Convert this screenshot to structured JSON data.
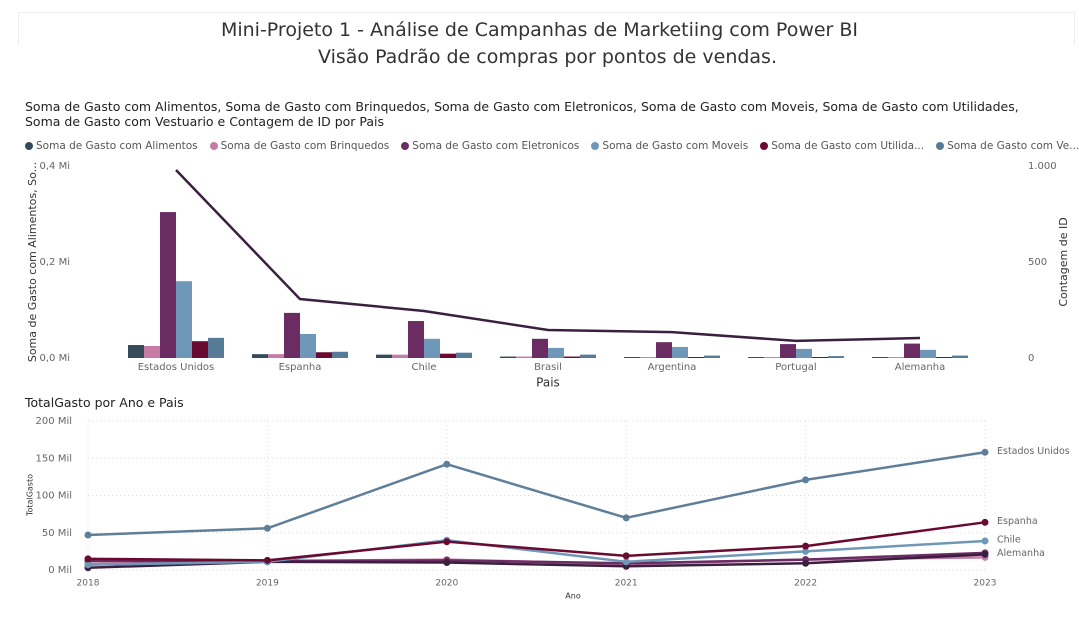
{
  "header": {
    "title": "Mini-Projeto 1 - Análise de Campanhas de Marketiing com Power BI",
    "subtitle": "Visão Padrão de compras por pontos de vendas."
  },
  "chart_data": [
    {
      "type": "bar",
      "title": "Soma de Gasto com Alimentos, Soma de Gasto com Brinquedos, Soma de Gasto com Eletronicos, Soma de Gasto com Moveis, Soma de Gasto com Utilidades, Soma de Gasto com Vestuario e Contagem de ID por Pais",
      "x_label": "Pais",
      "y_label": "Soma de Gasto com Alimentos, So...",
      "y2_label": "Contagem de ID",
      "categories": [
        "Estados Unidos",
        "Espanha",
        "Chile",
        "Brasil",
        "Argentina",
        "Portugal",
        "Alemanha"
      ],
      "series": [
        {
          "name": "Soma de Gasto com Alimentos",
          "color": "#374a5a",
          "values": [
            27000,
            8000,
            7000,
            3000,
            2000,
            2000,
            2000
          ]
        },
        {
          "name": "Soma de Gasto com Brinquedos",
          "color": "#c77ba7",
          "values": [
            25000,
            8000,
            7000,
            3000,
            2000,
            2000,
            2000
          ]
        },
        {
          "name": "Soma de Gasto com Eletronicos",
          "color": "#6b2c64",
          "values": [
            304000,
            94000,
            77000,
            40000,
            33000,
            29000,
            30000
          ]
        },
        {
          "name": "Soma de Gasto com Moveis",
          "color": "#6f98b8",
          "values": [
            160000,
            50000,
            40000,
            21000,
            23000,
            19000,
            17000
          ]
        },
        {
          "name": "Soma de Gasto com Utilida...",
          "color": "#6b0a30",
          "values": [
            35000,
            12000,
            9000,
            3000,
            2000,
            2000,
            2000
          ]
        },
        {
          "name": "Soma de Gasto com Ve...",
          "color": "#557b96",
          "values": [
            42000,
            13000,
            11000,
            7000,
            5000,
            4000,
            5000
          ]
        },
        {
          "name": "Contagem de ID",
          "color": "#3a1f3f",
          "type": "line",
          "axis": "y2",
          "values": [
            979,
            307,
            245,
            146,
            135,
            89,
            104
          ]
        }
      ],
      "ylim": [
        0,
        400000
      ],
      "yticks": [
        {
          "value": 0,
          "label": "0,0 Mi"
        },
        {
          "value": 200000,
          "label": "0,2 Mi"
        },
        {
          "value": 400000,
          "label": "0,4 Mi"
        }
      ],
      "y2lim": [
        0,
        1000
      ],
      "y2ticks": [
        0,
        500,
        {
          "value": 1000,
          "label": "1.000"
        }
      ],
      "grid": false
    },
    {
      "type": "line",
      "title": "TotalGasto por Ano e Pais",
      "x_label": "Ano",
      "y_label": "TotalGasto",
      "x": [
        2018,
        2019,
        2020,
        2021,
        2022,
        2023
      ],
      "xlim": [
        2018,
        2023
      ],
      "xticks": [
        2018,
        2019,
        2020,
        2021,
        2022,
        2023
      ],
      "ylim": [
        0,
        200000
      ],
      "yticks": [
        {
          "value": 0,
          "label": "0 Mil"
        },
        {
          "value": 50000,
          "label": "50 Mil"
        },
        {
          "value": 100000,
          "label": "100 Mil"
        },
        {
          "value": 150000,
          "label": "150 Mil"
        },
        {
          "value": 200000,
          "label": "200 Mil"
        }
      ],
      "series": [
        {
          "color": "#c77ba7",
          "values": [
            8000,
            12000,
            14000,
            8000,
            14000,
            17000
          ]
        },
        {
          "color": "#6b2c64",
          "values": [
            12000,
            12000,
            13000,
            9000,
            14000,
            23000
          ]
        },
        {
          "name": "Alemanha",
          "color": "#3a1f3f",
          "values": [
            3000,
            11000,
            10000,
            5000,
            9000,
            21000
          ]
        },
        {
          "name": "Chile",
          "color": "#6f98b8",
          "values": [
            7000,
            11000,
            40000,
            11000,
            25000,
            39000
          ]
        },
        {
          "name": "Espanha",
          "color": "#6b0a30",
          "values": [
            15000,
            13000,
            38000,
            19000,
            32000,
            64000
          ]
        },
        {
          "name": "Estados Unidos",
          "color": "#5f7f99",
          "values": [
            47000,
            56000,
            142000,
            70000,
            121000,
            158000
          ]
        }
      ],
      "grid": true
    }
  ]
}
